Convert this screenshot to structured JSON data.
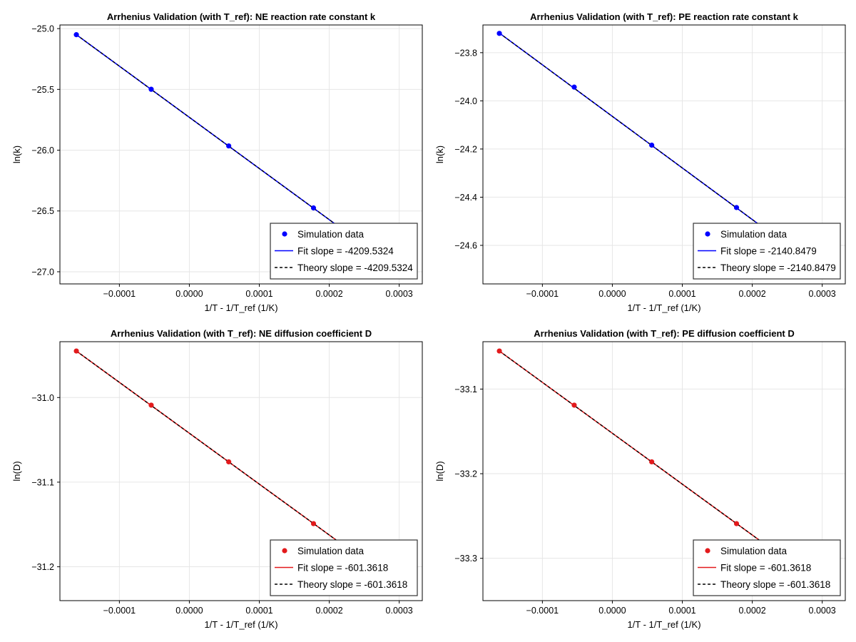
{
  "chart_data": [
    {
      "type": "scatter",
      "title": "Arrhenius Validation (with T_ref): NE reaction rate constant k",
      "xlabel": "1/T - 1/T_ref (1/K)",
      "ylabel": "ln(k)",
      "color": "#0000ff",
      "xlim": [
        -0.000185,
        0.000333
      ],
      "ylim": [
        -27.1,
        -24.97
      ],
      "xticks": [
        -0.0001,
        0.0,
        0.0001,
        0.0002,
        0.0003
      ],
      "xtick_labels": [
        "−0.0001",
        "0.0000",
        "0.0001",
        "0.0002",
        "0.0003"
      ],
      "yticks": [
        -25.0,
        -25.5,
        -26.0,
        -26.5,
        -27.0
      ],
      "ytick_labels": [
        "−25.0",
        "−25.5",
        "−26.0",
        "−26.5",
        "−27.0"
      ],
      "x": [
        -0.0001615,
        -5.45e-05,
        5.63e-05,
        0.0001775
      ],
      "y": [
        -25.05,
        -25.499,
        -25.965,
        -26.475
      ],
      "fit_slope": -4209.5324,
      "fit_intercept": -25.7298,
      "line_x": [
        -0.0001615,
        0.00021
      ],
      "legend": {
        "position": "bottom-right",
        "entries": [
          "Simulation data",
          "Fit slope = -4209.5324",
          "Theory slope = -4209.5324"
        ]
      }
    },
    {
      "type": "scatter",
      "title": "Arrhenius Validation (with T_ref): PE reaction rate constant k",
      "xlabel": "1/T - 1/T_ref (1/K)",
      "ylabel": "ln(k)",
      "color": "#0000ff",
      "xlim": [
        -0.000185,
        0.000333
      ],
      "ylim": [
        -24.76,
        -23.685
      ],
      "xticks": [
        -0.0001,
        0.0,
        0.0001,
        0.0002,
        0.0003
      ],
      "xtick_labels": [
        "−0.0001",
        "0.0000",
        "0.0001",
        "0.0002",
        "0.0003"
      ],
      "yticks": [
        -23.8,
        -24.0,
        -24.2,
        -24.4,
        -24.6
      ],
      "ytick_labels": [
        "−23.8",
        "−24.0",
        "−24.2",
        "−24.4",
        "−24.6"
      ],
      "x": [
        -0.0001615,
        -5.45e-05,
        5.63e-05,
        0.0001775
      ],
      "y": [
        -23.72,
        -23.943,
        -24.184,
        -24.443
      ],
      "fit_slope": -2140.8479,
      "fit_intercept": -24.0645,
      "line_x": [
        -0.0001615,
        0.00021
      ],
      "legend": {
        "position": "bottom-right",
        "entries": [
          "Simulation data",
          "Fit slope = -2140.8479",
          "Theory slope = -2140.8479"
        ]
      }
    },
    {
      "type": "scatter",
      "title": "Arrhenius Validation (with T_ref): NE diffusion coefficient D",
      "xlabel": "1/T - 1/T_ref (1/K)",
      "ylabel": "ln(D)",
      "color": "#e31a1c",
      "xlim": [
        -0.000185,
        0.000333
      ],
      "ylim": [
        -31.24,
        -30.934
      ],
      "xticks": [
        -0.0001,
        0.0,
        0.0001,
        0.0002,
        0.0003
      ],
      "xtick_labels": [
        "−0.0001",
        "0.0000",
        "0.0001",
        "0.0002",
        "0.0003"
      ],
      "yticks": [
        -31.0,
        -31.1,
        -31.2
      ],
      "ytick_labels": [
        "−31.0",
        "−31.1",
        "−31.2"
      ],
      "x": [
        -0.0001615,
        -5.45e-05,
        5.63e-05,
        0.0001775
      ],
      "y": [
        -30.945,
        -31.009,
        -31.076,
        -31.149
      ],
      "fit_slope": -601.3618,
      "fit_intercept": -31.0422,
      "line_x": [
        -0.0001615,
        0.00021
      ],
      "legend": {
        "position": "bottom-right",
        "entries": [
          "Simulation data",
          "Fit slope = -601.3618",
          "Theory slope = -601.3618"
        ]
      }
    },
    {
      "type": "scatter",
      "title": "Arrhenius Validation (with T_ref): PE diffusion coefficient D",
      "xlabel": "1/T - 1/T_ref (1/K)",
      "ylabel": "ln(D)",
      "color": "#e31a1c",
      "xlim": [
        -0.000185,
        0.000333
      ],
      "ylim": [
        -33.35,
        -33.044
      ],
      "xticks": [
        -0.0001,
        0.0,
        0.0001,
        0.0002,
        0.0003
      ],
      "xtick_labels": [
        "−0.0001",
        "0.0000",
        "0.0001",
        "0.0002",
        "0.0003"
      ],
      "yticks": [
        -33.1,
        -33.2,
        -33.3
      ],
      "ytick_labels": [
        "−33.1",
        "−33.2",
        "−33.3"
      ],
      "x": [
        -0.0001615,
        -5.45e-05,
        5.63e-05,
        0.0001775
      ],
      "y": [
        -33.055,
        -33.119,
        -33.186,
        -33.259
      ],
      "fit_slope": -601.3618,
      "fit_intercept": -33.1522,
      "line_x": [
        -0.0001615,
        0.00021
      ],
      "legend": {
        "position": "bottom-right",
        "entries": [
          "Simulation data",
          "Fit slope = -601.3618",
          "Theory slope = -601.3618"
        ]
      }
    }
  ]
}
